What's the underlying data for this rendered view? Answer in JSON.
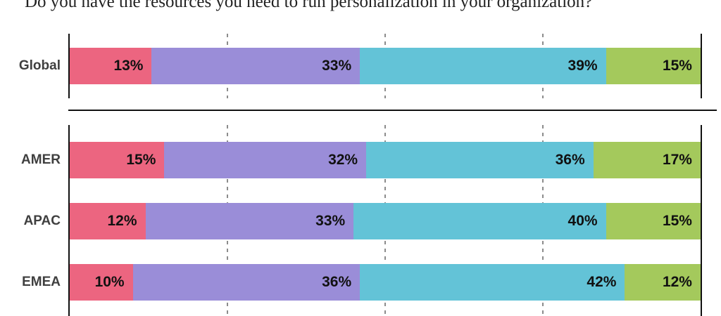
{
  "title": "Do you have the resources you need to run personalization in your organization?",
  "chart_data": {
    "type": "bar",
    "stacked": true,
    "orientation": "horizontal",
    "value_unit": "%",
    "xlim": [
      0,
      100
    ],
    "gridlines_percent": [
      25,
      50,
      75
    ],
    "grid_style": "dashed-vertical",
    "legend": "not-visible",
    "categories": [
      "Global",
      "AMER",
      "APAC",
      "EMEA"
    ],
    "sections": [
      [
        0
      ],
      [
        1,
        2,
        3
      ]
    ],
    "series": [
      {
        "name": "segment-1-pink",
        "color": "#EC6580",
        "values": [
          13,
          15,
          12,
          10
        ]
      },
      {
        "name": "segment-2-purple",
        "color": "#9A8DD8",
        "values": [
          33,
          32,
          33,
          36
        ]
      },
      {
        "name": "segment-3-teal",
        "color": "#63C3D7",
        "values": [
          39,
          36,
          40,
          42
        ]
      },
      {
        "name": "segment-4-green",
        "color": "#A4C95C",
        "values": [
          15,
          17,
          15,
          12
        ]
      }
    ],
    "data_labels": [
      [
        "13%",
        "33%",
        "39%",
        "15%"
      ],
      [
        "15%",
        "32%",
        "36%",
        "17%"
      ],
      [
        "12%",
        "33%",
        "40%",
        "15%"
      ],
      [
        "10%",
        "36%",
        "42%",
        "12%"
      ]
    ]
  },
  "styles": {
    "background": "#ffffff",
    "axis_color": "#111111",
    "gridline_color": "#8c8c8c",
    "separator_color": "#111111",
    "row_label_color": "#3f3f3f",
    "value_label_color": "#111111",
    "title_color": "#222222"
  }
}
